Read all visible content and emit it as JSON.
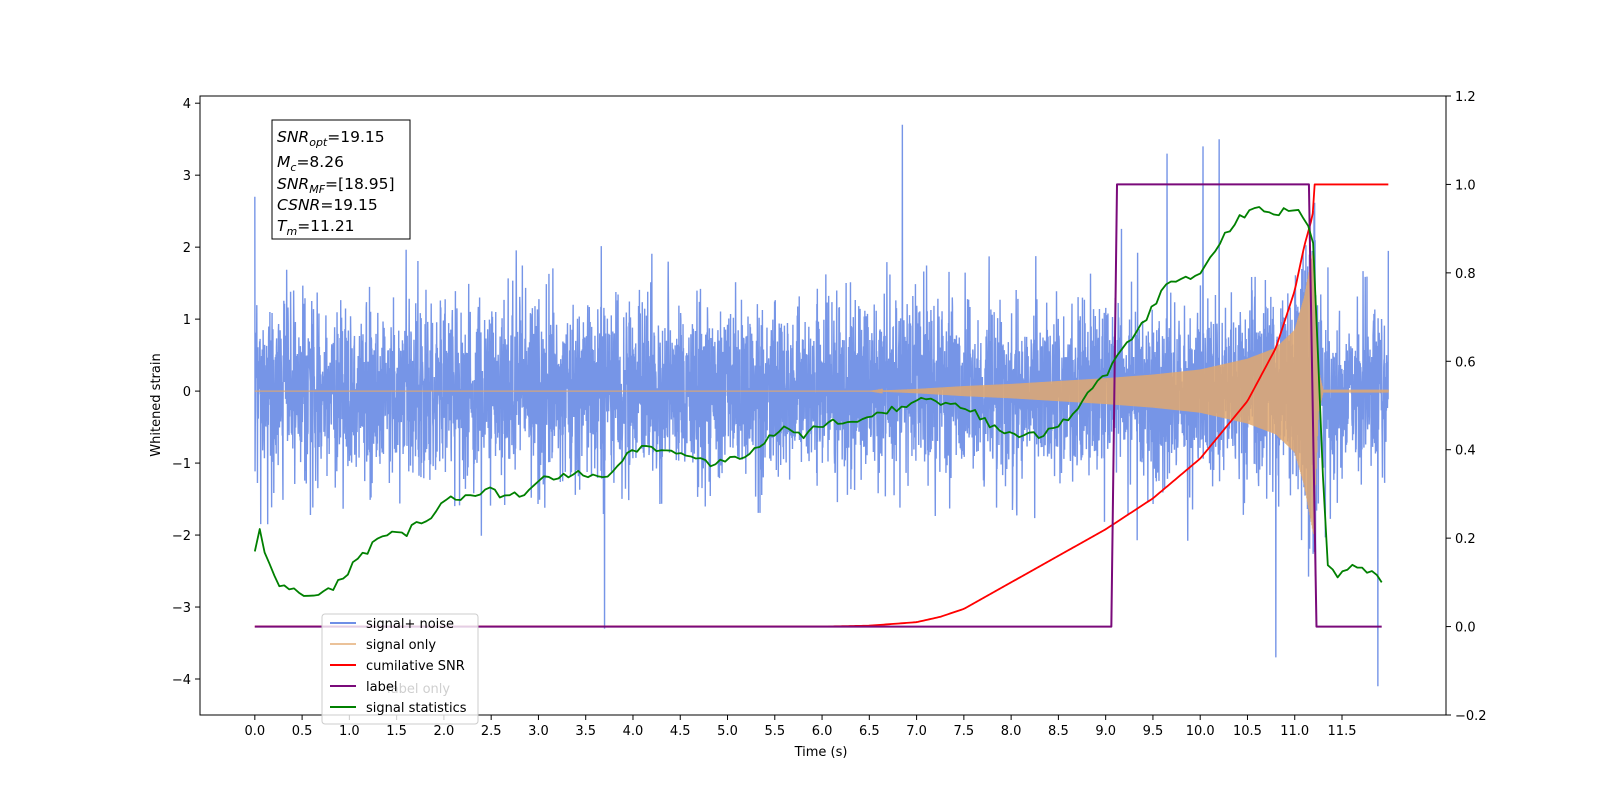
{
  "chart_data": {
    "type": "line",
    "xlabel": "Time (s)",
    "ylabel": "Whitened strain",
    "xlim": [
      -0.58,
      12.6
    ],
    "ylim_left": [
      -4.5,
      4.1
    ],
    "ylim_right": [
      -0.2,
      1.2
    ],
    "x_ticks": [
      0.0,
      0.5,
      1.0,
      1.5,
      2.0,
      2.5,
      3.0,
      3.5,
      4.0,
      4.5,
      5.0,
      5.5,
      6.0,
      6.5,
      7.0,
      7.5,
      8.0,
      8.5,
      9.0,
      9.5,
      10.0,
      10.5,
      11.0,
      11.5
    ],
    "x_tick_labels": [
      "0.0",
      "0.5",
      "1.0",
      "1.5",
      "2.0",
      "2.5",
      "3.0",
      "3.5",
      "4.0",
      "4.5",
      "5.0",
      "5.5",
      "6.0",
      "6.5",
      "7.0",
      "7.5",
      "8.0",
      "8.5",
      "9.0",
      "9.5",
      "10.0",
      "10.5",
      "11.0",
      "11.5"
    ],
    "y_ticks_left": [
      4,
      3,
      2,
      1,
      0,
      -1,
      -2,
      -3,
      -4
    ],
    "y_tick_labels_left": [
      "4",
      "3",
      "2",
      "1",
      "0",
      "−1",
      "−2",
      "−3",
      "−4"
    ],
    "y_ticks_right": [
      1.2,
      1.0,
      0.8,
      0.6,
      0.4,
      0.2,
      0.0,
      -0.2
    ],
    "y_tick_labels_right": [
      "1.2",
      "1.0",
      "0.8",
      "0.6",
      "0.4",
      "0.2",
      "0.0",
      "−0.2"
    ],
    "legend_position": "lower-left",
    "series": [
      {
        "name": "signal+ noise",
        "color": "#6F8FE6",
        "axis": "left",
        "x_range": [
          0.0,
          11.99
        ],
        "typical_band": [
          -1.5,
          1.6
        ],
        "peaks": [
          [
            0.0,
            2.7
          ],
          [
            6.85,
            3.7
          ],
          [
            10.03,
            3.4
          ],
          [
            10.2,
            3.5
          ],
          [
            9.65,
            3.3
          ],
          [
            3.7,
            -3.3
          ],
          [
            11.88,
            -4.1
          ],
          [
            10.8,
            -3.7
          ]
        ]
      },
      {
        "name": "signal only",
        "color": "#E2A86E",
        "axis": "left",
        "envelope_x": [
          0.0,
          6.5,
          7.0,
          7.5,
          8.0,
          8.5,
          9.0,
          9.5,
          10.0,
          10.5,
          10.8,
          11.0,
          11.1,
          11.2,
          11.25,
          11.3,
          11.99
        ],
        "envelope_amp": [
          0.0,
          0.0,
          0.03,
          0.07,
          0.1,
          0.14,
          0.18,
          0.23,
          0.3,
          0.45,
          0.6,
          0.85,
          1.3,
          2.0,
          0.3,
          0.02,
          0.02
        ]
      },
      {
        "name": "cumilative SNR",
        "color": "#FF0000",
        "axis": "right",
        "x": [
          0.0,
          6.0,
          6.5,
          7.0,
          7.25,
          7.5,
          7.75,
          8.0,
          8.5,
          9.0,
          9.5,
          10.0,
          10.5,
          10.8,
          11.0,
          11.1,
          11.19,
          11.2,
          11.99
        ],
        "y": [
          0.0,
          0.0,
          0.002,
          0.01,
          0.022,
          0.04,
          0.07,
          0.1,
          0.16,
          0.22,
          0.29,
          0.38,
          0.51,
          0.63,
          0.76,
          0.86,
          0.93,
          1.0,
          1.0
        ]
      },
      {
        "name": "label",
        "color": "#7A0A7A",
        "axis": "right",
        "x": [
          0.0,
          9.06,
          9.12,
          11.15,
          11.23,
          11.92
        ],
        "y": [
          0.0,
          0.0,
          1.0,
          1.0,
          0.0,
          0.0
        ]
      },
      {
        "name": "signal statistics",
        "color": "#008000",
        "axis": "right",
        "x": [
          0.0,
          0.06,
          0.12,
          0.2,
          0.3,
          0.5,
          0.6,
          0.7,
          0.85,
          1.0,
          1.2,
          1.25,
          1.3,
          1.5,
          1.6,
          1.7,
          1.8,
          1.9,
          2.0,
          2.1,
          2.2,
          2.3,
          2.4,
          2.5,
          2.6,
          2.8,
          3.0,
          3.1,
          3.2,
          3.4,
          3.5,
          3.7,
          3.8,
          3.9,
          4.0,
          4.2,
          4.4,
          4.6,
          4.8,
          5.0,
          5.2,
          5.4,
          5.5,
          5.6,
          5.8,
          6.0,
          6.2,
          6.4,
          6.6,
          6.8,
          7.0,
          7.2,
          7.4,
          7.6,
          7.8,
          8.0,
          8.2,
          8.4,
          8.6,
          8.8,
          9.0,
          9.1,
          9.2,
          9.4,
          9.6,
          9.8,
          10.0,
          10.2,
          10.4,
          10.6,
          10.8,
          11.0,
          11.1,
          11.2,
          11.28,
          11.35,
          11.45,
          11.6,
          11.8,
          11.92
        ],
        "y": [
          0.17,
          0.22,
          0.16,
          0.11,
          0.09,
          0.07,
          0.07,
          0.075,
          0.09,
          0.13,
          0.17,
          0.2,
          0.2,
          0.21,
          0.2,
          0.24,
          0.24,
          0.25,
          0.28,
          0.29,
          0.29,
          0.29,
          0.31,
          0.32,
          0.29,
          0.3,
          0.32,
          0.34,
          0.34,
          0.35,
          0.34,
          0.34,
          0.36,
          0.38,
          0.4,
          0.4,
          0.39,
          0.38,
          0.37,
          0.38,
          0.38,
          0.42,
          0.44,
          0.45,
          0.43,
          0.46,
          0.46,
          0.47,
          0.49,
          0.49,
          0.51,
          0.51,
          0.5,
          0.49,
          0.45,
          0.43,
          0.43,
          0.44,
          0.47,
          0.52,
          0.57,
          0.6,
          0.63,
          0.69,
          0.76,
          0.79,
          0.8,
          0.87,
          0.92,
          0.95,
          0.93,
          0.95,
          0.93,
          0.86,
          0.42,
          0.14,
          0.11,
          0.14,
          0.12,
          0.1
        ]
      }
    ],
    "annotation": {
      "lines": [
        {
          "sym": "SNR",
          "sub": "opt",
          "val": "=19.15"
        },
        {
          "sym": "M",
          "sub": "c",
          "val": "=8.26"
        },
        {
          "sym": "SNR",
          "sub": "MF",
          "val": "=[18.95]"
        },
        {
          "sym": "CSNR",
          "sub": "",
          "val": "=19.15"
        },
        {
          "sym": "T",
          "sub": "m",
          "val": "=11.21"
        }
      ]
    },
    "legend_overlap_text": "label only",
    "noise_seed": 20231
  }
}
